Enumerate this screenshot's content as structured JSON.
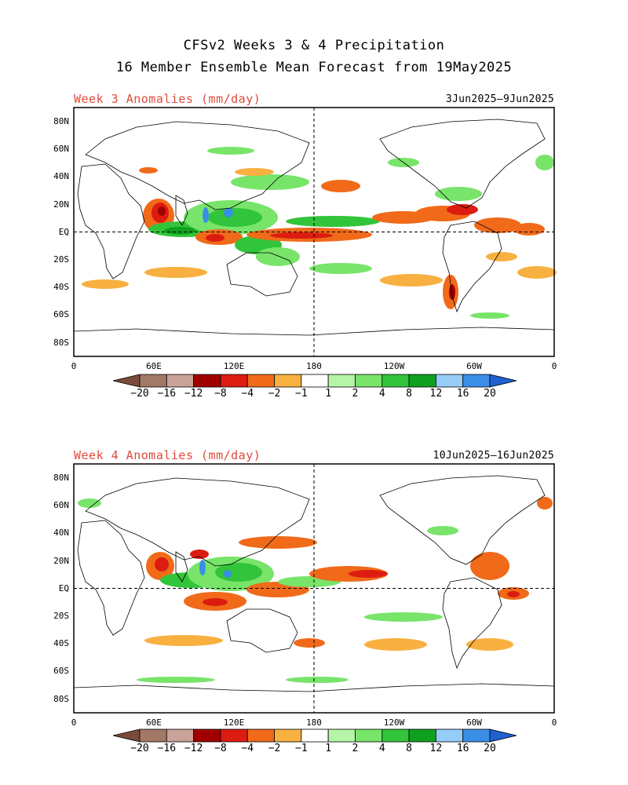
{
  "title": {
    "line1": "CFSv2 Weeks 3 & 4 Precipitation",
    "line2": "16 Member Ensemble Mean Forecast from 19May2025"
  },
  "panels": [
    {
      "title": "Week 3 Anomalies (mm/day)",
      "dates": "3Jun2025–9Jun2025"
    },
    {
      "title": "Week 4 Anomalies (mm/day)",
      "dates": "10Jun2025–16Jun2025"
    }
  ],
  "lat_labels": [
    "80N",
    "60N",
    "40N",
    "20N",
    "EQ",
    "20S",
    "40S",
    "60S",
    "80S"
  ],
  "lon_labels": [
    "0",
    "60E",
    "120E",
    "180",
    "120W",
    "60W",
    "0"
  ],
  "colorbar": {
    "labels": [
      "−20",
      "−16",
      "−12",
      "−8",
      "−4",
      "−2",
      "−1",
      "1",
      "2",
      "4",
      "8",
      "12",
      "16",
      "20"
    ],
    "colors": [
      "#7a4a3a",
      "#a27866",
      "#c9a298",
      "#a00000",
      "#dc1c10",
      "#f06a1a",
      "#f8b040",
      "#ffffff",
      "#b6f4a8",
      "#78e46a",
      "#32c43a",
      "#10a020",
      "#96ccf8",
      "#3a8ee6",
      "#2060d0"
    ]
  }
}
